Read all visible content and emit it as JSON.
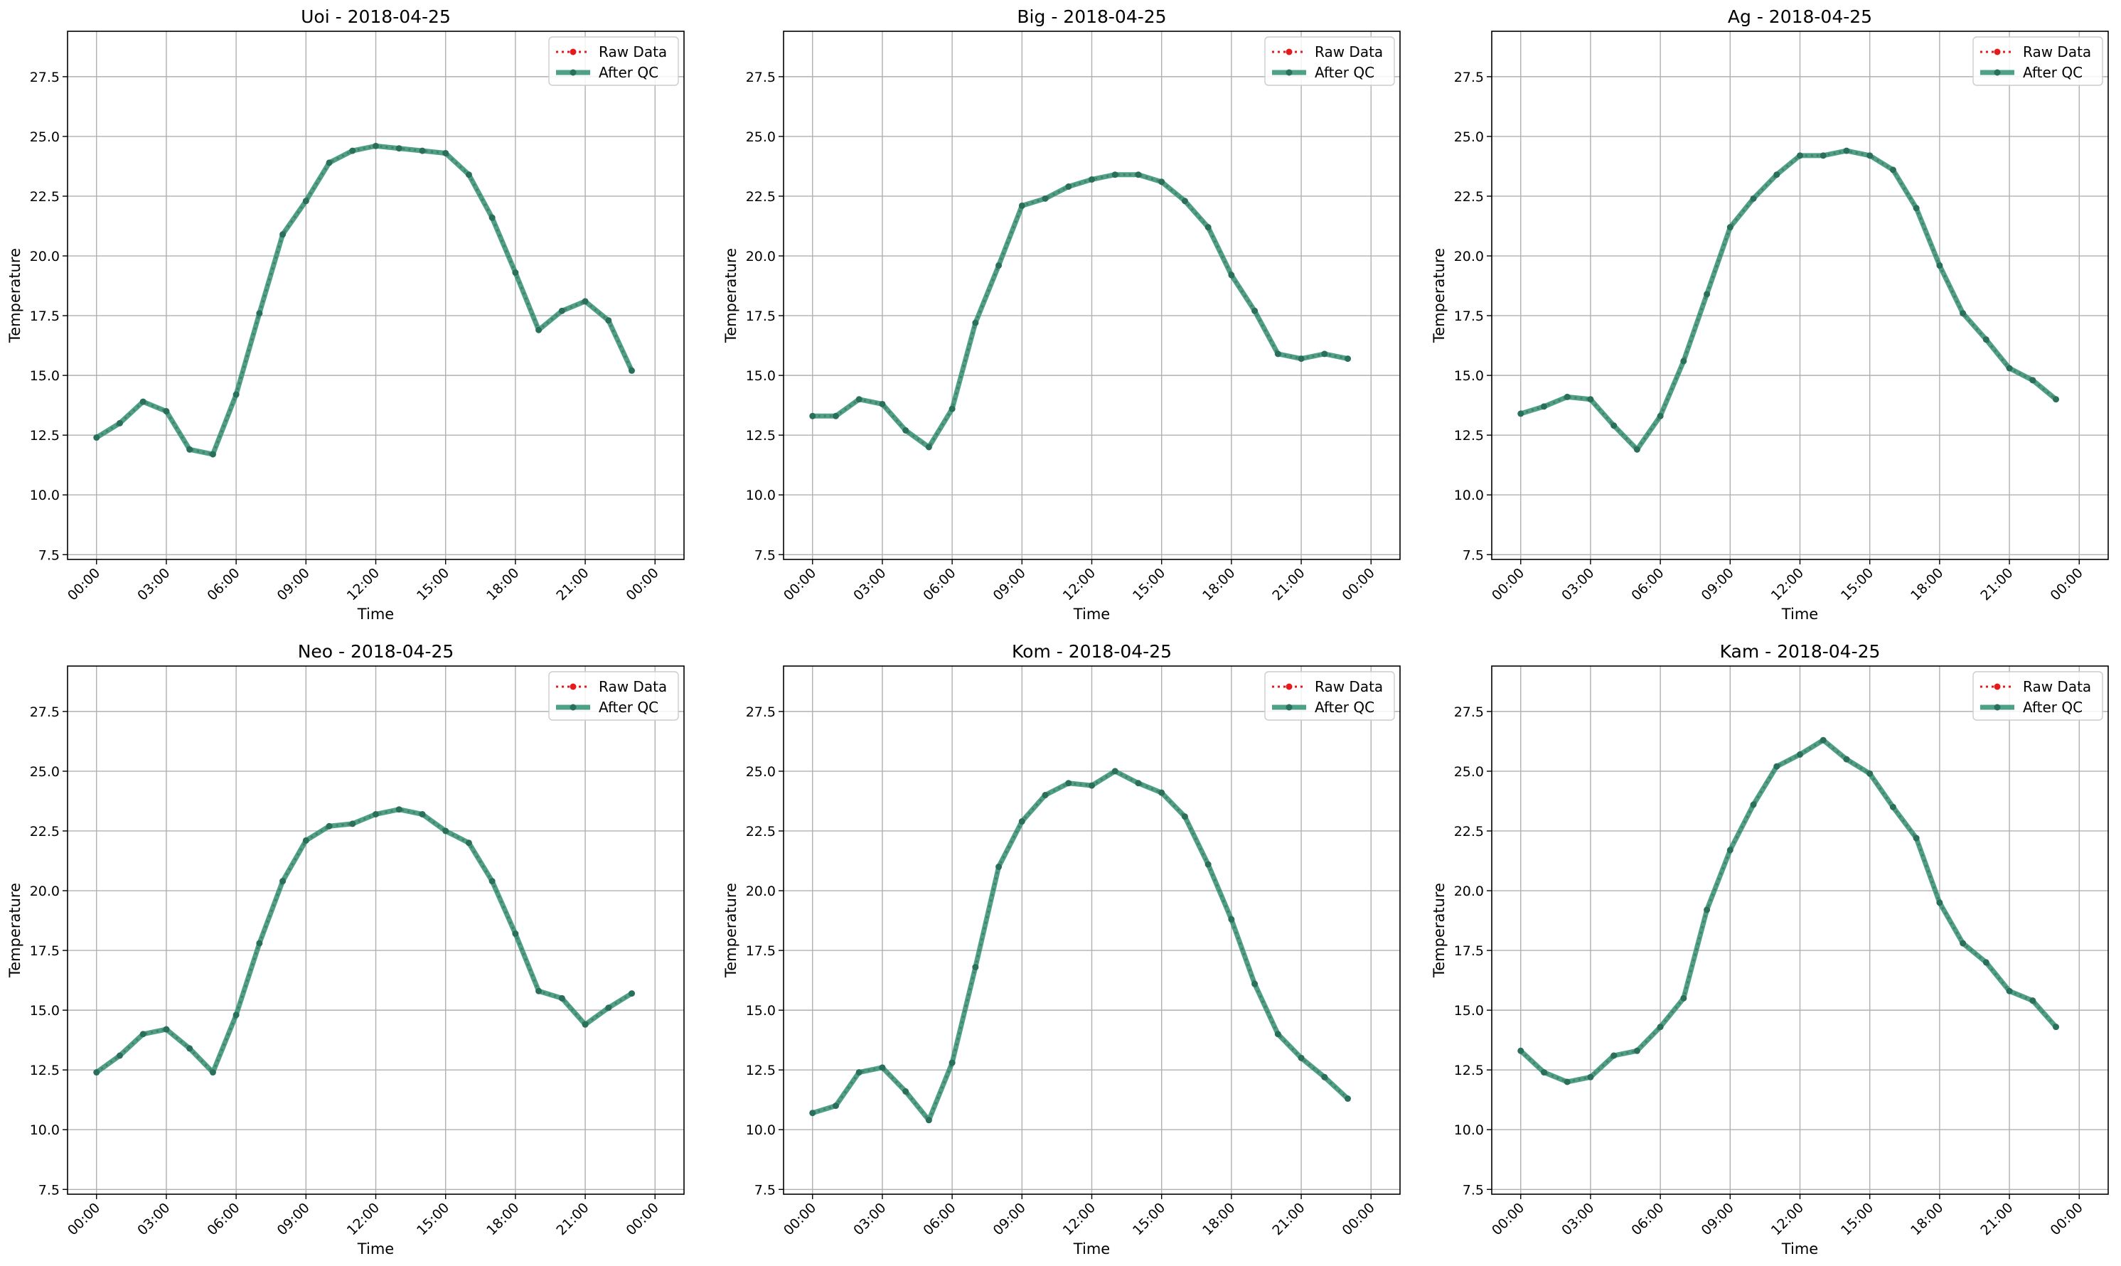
{
  "colors": {
    "raw": "#e41a1c",
    "after_qc": "#2f8f72",
    "grid": "#b0b0b0",
    "axes": "#000000"
  },
  "legend": {
    "raw_label": "Raw Data",
    "qc_label": "After QC"
  },
  "chart_data": [
    {
      "type": "line",
      "title": "Uoi - 2018-04-25",
      "xlabel": "Time",
      "ylabel": "Temperature",
      "ylim": [
        7.3,
        29.4
      ],
      "x_ticks": [
        "00:00",
        "03:00",
        "06:00",
        "09:00",
        "12:00",
        "15:00",
        "18:00",
        "21:00",
        "00:00"
      ],
      "y_ticks": [
        "7.5",
        "10.0",
        "12.5",
        "15.0",
        "17.5",
        "20.0",
        "22.5",
        "25.0",
        "27.5"
      ],
      "grid": true,
      "legend_position": "upper-right",
      "series": [
        {
          "name": "Raw Data",
          "values": [
            12.4,
            13.0,
            13.9,
            13.5,
            11.9,
            11.7,
            14.2,
            17.6,
            20.9,
            22.3,
            23.9,
            24.4,
            24.6,
            24.5,
            24.4,
            24.3,
            23.4,
            21.6,
            19.3,
            16.9,
            17.7,
            18.1,
            17.3,
            15.2
          ]
        },
        {
          "name": "After QC",
          "values": [
            12.4,
            13.0,
            13.9,
            13.5,
            11.9,
            11.7,
            14.2,
            17.6,
            20.9,
            22.3,
            23.9,
            24.4,
            24.6,
            24.5,
            24.4,
            24.3,
            23.4,
            21.6,
            19.3,
            16.9,
            17.7,
            18.1,
            17.3,
            15.2
          ]
        }
      ]
    },
    {
      "type": "line",
      "title": "Big - 2018-04-25",
      "xlabel": "Time",
      "ylabel": "Temperature",
      "ylim": [
        7.3,
        29.4
      ],
      "x_ticks": [
        "00:00",
        "03:00",
        "06:00",
        "09:00",
        "12:00",
        "15:00",
        "18:00",
        "21:00",
        "00:00"
      ],
      "y_ticks": [
        "7.5",
        "10.0",
        "12.5",
        "15.0",
        "17.5",
        "20.0",
        "22.5",
        "25.0",
        "27.5"
      ],
      "grid": true,
      "legend_position": "upper-right",
      "series": [
        {
          "name": "Raw Data",
          "values": [
            13.3,
            13.3,
            14.0,
            13.8,
            12.7,
            12.0,
            13.6,
            17.2,
            19.6,
            22.1,
            22.4,
            22.9,
            23.2,
            23.4,
            23.4,
            23.1,
            22.3,
            21.2,
            19.2,
            17.7,
            15.9,
            15.7,
            15.9,
            15.7
          ]
        },
        {
          "name": "After QC",
          "values": [
            13.3,
            13.3,
            14.0,
            13.8,
            12.7,
            12.0,
            13.6,
            17.2,
            19.6,
            22.1,
            22.4,
            22.9,
            23.2,
            23.4,
            23.4,
            23.1,
            22.3,
            21.2,
            19.2,
            17.7,
            15.9,
            15.7,
            15.9,
            15.7
          ]
        }
      ]
    },
    {
      "type": "line",
      "title": "Ag - 2018-04-25",
      "xlabel": "Time",
      "ylabel": "Temperature",
      "ylim": [
        7.3,
        29.4
      ],
      "x_ticks": [
        "00:00",
        "03:00",
        "06:00",
        "09:00",
        "12:00",
        "15:00",
        "18:00",
        "21:00",
        "00:00"
      ],
      "y_ticks": [
        "7.5",
        "10.0",
        "12.5",
        "15.0",
        "17.5",
        "20.0",
        "22.5",
        "25.0",
        "27.5"
      ],
      "grid": true,
      "legend_position": "upper-right",
      "series": [
        {
          "name": "Raw Data",
          "values": [
            13.4,
            13.7,
            14.1,
            14.0,
            12.9,
            11.9,
            13.3,
            15.6,
            18.4,
            21.2,
            22.4,
            23.4,
            24.2,
            24.2,
            24.4,
            24.2,
            23.6,
            22.0,
            19.6,
            17.6,
            16.5,
            15.3,
            14.8,
            14.0
          ]
        },
        {
          "name": "After QC",
          "values": [
            13.4,
            13.7,
            14.1,
            14.0,
            12.9,
            11.9,
            13.3,
            15.6,
            18.4,
            21.2,
            22.4,
            23.4,
            24.2,
            24.2,
            24.4,
            24.2,
            23.6,
            22.0,
            19.6,
            17.6,
            16.5,
            15.3,
            14.8,
            14.0
          ]
        }
      ]
    },
    {
      "type": "line",
      "title": "Neo - 2018-04-25",
      "xlabel": "Time",
      "ylabel": "Temperature",
      "ylim": [
        7.3,
        29.4
      ],
      "x_ticks": [
        "00:00",
        "03:00",
        "06:00",
        "09:00",
        "12:00",
        "15:00",
        "18:00",
        "21:00",
        "00:00"
      ],
      "y_ticks": [
        "7.5",
        "10.0",
        "12.5",
        "15.0",
        "17.5",
        "20.0",
        "22.5",
        "25.0",
        "27.5"
      ],
      "grid": true,
      "legend_position": "upper-right",
      "series": [
        {
          "name": "Raw Data",
          "values": [
            12.4,
            13.1,
            14.0,
            14.2,
            13.4,
            12.4,
            14.8,
            17.8,
            20.4,
            22.1,
            22.7,
            22.8,
            23.2,
            23.4,
            23.2,
            22.5,
            22.0,
            20.4,
            18.2,
            15.8,
            15.5,
            14.4,
            15.1,
            15.7
          ]
        },
        {
          "name": "After QC",
          "values": [
            12.4,
            13.1,
            14.0,
            14.2,
            13.4,
            12.4,
            14.8,
            17.8,
            20.4,
            22.1,
            22.7,
            22.8,
            23.2,
            23.4,
            23.2,
            22.5,
            22.0,
            20.4,
            18.2,
            15.8,
            15.5,
            14.4,
            15.1,
            15.7
          ]
        }
      ]
    },
    {
      "type": "line",
      "title": "Kom - 2018-04-25",
      "xlabel": "Time",
      "ylabel": "Temperature",
      "ylim": [
        7.3,
        29.4
      ],
      "x_ticks": [
        "00:00",
        "03:00",
        "06:00",
        "09:00",
        "12:00",
        "15:00",
        "18:00",
        "21:00",
        "00:00"
      ],
      "y_ticks": [
        "7.5",
        "10.0",
        "12.5",
        "15.0",
        "17.5",
        "20.0",
        "22.5",
        "25.0",
        "27.5"
      ],
      "grid": true,
      "legend_position": "upper-right",
      "series": [
        {
          "name": "Raw Data",
          "values": [
            10.7,
            11.0,
            12.4,
            12.6,
            11.6,
            10.4,
            12.8,
            16.8,
            21.0,
            22.9,
            24.0,
            24.5,
            24.4,
            25.0,
            24.5,
            24.1,
            23.1,
            21.1,
            18.8,
            16.1,
            14.0,
            13.0,
            12.2,
            11.3
          ]
        },
        {
          "name": "After QC",
          "values": [
            10.7,
            11.0,
            12.4,
            12.6,
            11.6,
            10.4,
            12.8,
            16.8,
            21.0,
            22.9,
            24.0,
            24.5,
            24.4,
            25.0,
            24.5,
            24.1,
            23.1,
            21.1,
            18.8,
            16.1,
            14.0,
            13.0,
            12.2,
            11.3
          ]
        }
      ]
    },
    {
      "type": "line",
      "title": "Kam - 2018-04-25",
      "xlabel": "Time",
      "ylabel": "Temperature",
      "ylim": [
        7.3,
        29.4
      ],
      "x_ticks": [
        "00:00",
        "03:00",
        "06:00",
        "09:00",
        "12:00",
        "15:00",
        "18:00",
        "21:00",
        "00:00"
      ],
      "y_ticks": [
        "7.5",
        "10.0",
        "12.5",
        "15.0",
        "17.5",
        "20.0",
        "22.5",
        "25.0",
        "27.5"
      ],
      "grid": true,
      "legend_position": "upper-right",
      "series": [
        {
          "name": "Raw Data",
          "values": [
            13.3,
            12.4,
            12.0,
            12.2,
            13.1,
            13.3,
            14.3,
            15.5,
            19.2,
            21.7,
            23.6,
            25.2,
            25.7,
            26.3,
            25.5,
            24.9,
            23.5,
            22.2,
            19.5,
            17.8,
            17.0,
            15.8,
            15.4,
            14.3
          ]
        },
        {
          "name": "After QC",
          "values": [
            13.3,
            12.4,
            12.0,
            12.2,
            13.1,
            13.3,
            14.3,
            15.5,
            19.2,
            21.7,
            23.6,
            25.2,
            25.7,
            26.3,
            25.5,
            24.9,
            23.5,
            22.2,
            19.5,
            17.8,
            17.0,
            15.8,
            15.4,
            14.3
          ]
        }
      ]
    }
  ]
}
